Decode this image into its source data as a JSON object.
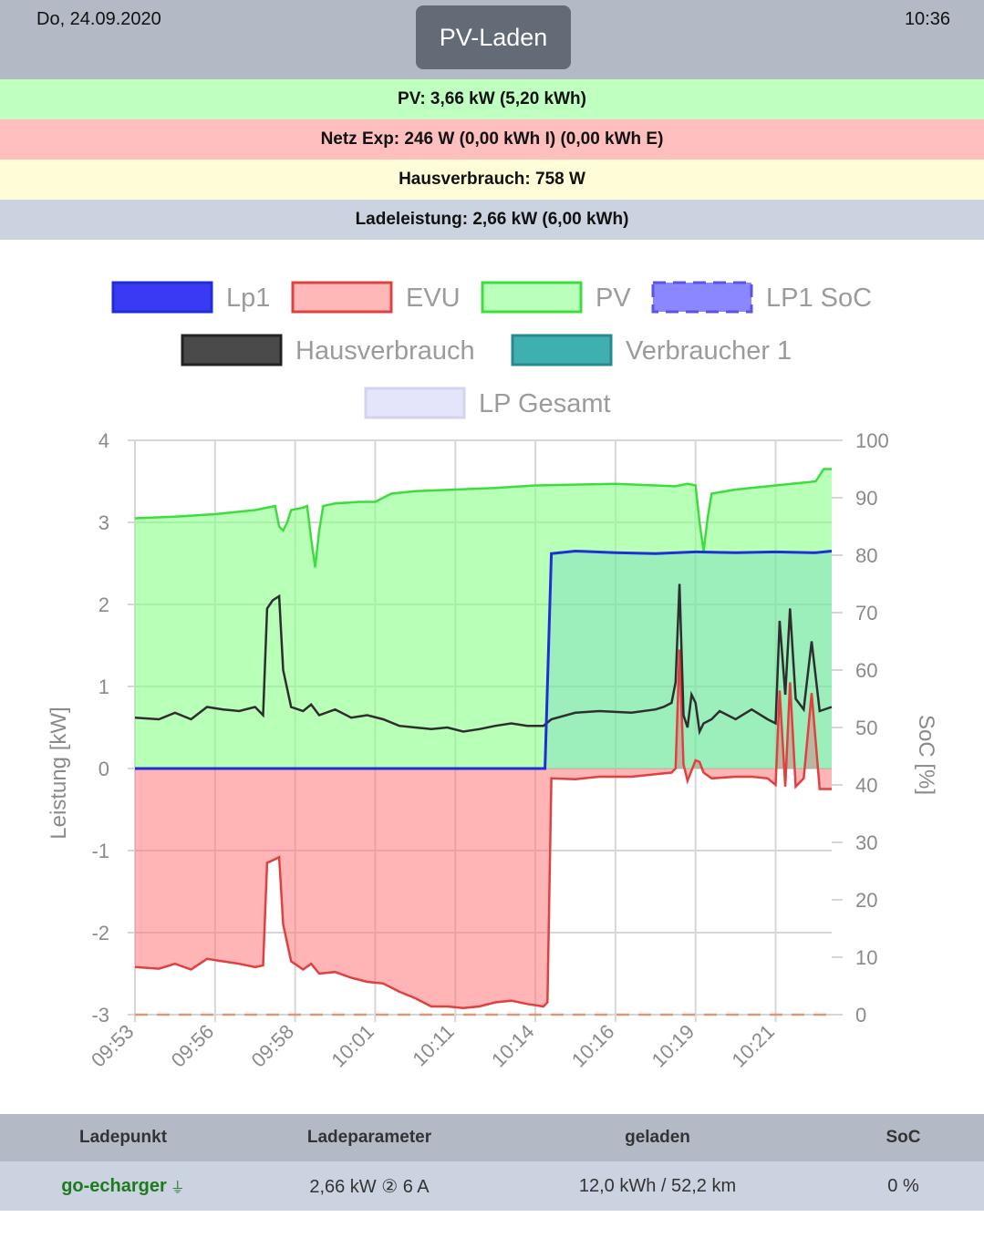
{
  "header": {
    "date": "Do, 24.09.2020",
    "time": "10:36",
    "mode_button": "PV-Laden"
  },
  "info": {
    "pv": "PV: 3,66 kW (5,20 kWh)",
    "netz": "Netz Exp: 246 W (0,00 kWh I) (0,00 kWh E)",
    "haus": "Hausverbrauch: 758 W",
    "lade": "Ladeleistung: 2,66 kW (6,00 kWh)"
  },
  "colors": {
    "lp1": "#1f2fd6",
    "evu": "#e04040",
    "pv": "#3ddd3d",
    "soc": "#7b78ff",
    "haus": "#2e2e2e",
    "verbraucher": "#39aaaa",
    "lp_gesamt": "#e4e4fb"
  },
  "chart_data": {
    "type": "line",
    "legend": [
      {
        "key": "lp1",
        "label": "Lp1"
      },
      {
        "key": "evu",
        "label": "EVU"
      },
      {
        "key": "pv",
        "label": "PV"
      },
      {
        "key": "soc",
        "label": "LP1 SoC"
      },
      {
        "key": "haus",
        "label": "Hausverbrauch"
      },
      {
        "key": "verbraucher",
        "label": "Verbraucher 1"
      },
      {
        "key": "lp_gesamt",
        "label": "LP Gesamt"
      }
    ],
    "ylabel": "Leistung [kW]",
    "ylabel_right": "SoC [%]",
    "ylim": [
      -3,
      4
    ],
    "ylim_right": [
      0,
      100
    ],
    "yticks": [
      "4",
      "3",
      "2",
      "1",
      "0",
      "-1",
      "-2",
      "-3"
    ],
    "yticks_right": [
      "100",
      "90",
      "80",
      "70",
      "60",
      "50",
      "40",
      "30",
      "20",
      "10",
      "0"
    ],
    "xlim": [
      0,
      8.7
    ],
    "xticks": [
      {
        "pos": 0,
        "label": "09:53"
      },
      {
        "pos": 1,
        "label": "09:56"
      },
      {
        "pos": 2,
        "label": "09:58"
      },
      {
        "pos": 3,
        "label": "10:01"
      },
      {
        "pos": 4,
        "label": "10:11"
      },
      {
        "pos": 5,
        "label": "10:14"
      },
      {
        "pos": 6,
        "label": "10:16"
      },
      {
        "pos": 7,
        "label": "10:19"
      },
      {
        "pos": 8,
        "label": "10:21"
      }
    ],
    "series": {
      "pv": [
        [
          0,
          3.05
        ],
        [
          0.5,
          3.07
        ],
        [
          1,
          3.1
        ],
        [
          1.5,
          3.15
        ],
        [
          1.75,
          3.2
        ],
        [
          1.8,
          2.95
        ],
        [
          1.85,
          2.9
        ],
        [
          1.9,
          3.0
        ],
        [
          1.95,
          3.15
        ],
        [
          2.1,
          3.18
        ],
        [
          2.15,
          3.2
        ],
        [
          2.2,
          2.8
        ],
        [
          2.25,
          2.45
        ],
        [
          2.3,
          2.9
        ],
        [
          2.35,
          3.2
        ],
        [
          2.5,
          3.23
        ],
        [
          2.8,
          3.25
        ],
        [
          3,
          3.25
        ],
        [
          3.1,
          3.3
        ],
        [
          3.2,
          3.35
        ],
        [
          3.5,
          3.38
        ],
        [
          4,
          3.4
        ],
        [
          4.5,
          3.42
        ],
        [
          5,
          3.45
        ],
        [
          6,
          3.47
        ],
        [
          6.5,
          3.45
        ],
        [
          6.75,
          3.44
        ],
        [
          6.9,
          3.47
        ],
        [
          7,
          3.45
        ],
        [
          7.05,
          3.0
        ],
        [
          7.1,
          2.65
        ],
        [
          7.15,
          3.05
        ],
        [
          7.2,
          3.35
        ],
        [
          7.5,
          3.4
        ],
        [
          8,
          3.45
        ],
        [
          8.5,
          3.5
        ],
        [
          8.6,
          3.65
        ],
        [
          8.7,
          3.65
        ]
      ],
      "lp1": [
        [
          0,
          0
        ],
        [
          5,
          0
        ],
        [
          5.12,
          0
        ],
        [
          5.2,
          2.62
        ],
        [
          5.5,
          2.65
        ],
        [
          6,
          2.63
        ],
        [
          6.5,
          2.62
        ],
        [
          7,
          2.64
        ],
        [
          7.5,
          2.63
        ],
        [
          8,
          2.64
        ],
        [
          8.5,
          2.63
        ],
        [
          8.7,
          2.65
        ]
      ],
      "haus": [
        [
          0,
          0.62
        ],
        [
          0.3,
          0.6
        ],
        [
          0.5,
          0.68
        ],
        [
          0.7,
          0.6
        ],
        [
          0.9,
          0.75
        ],
        [
          1.1,
          0.72
        ],
        [
          1.3,
          0.7
        ],
        [
          1.5,
          0.75
        ],
        [
          1.6,
          0.65
        ],
        [
          1.65,
          1.95
        ],
        [
          1.72,
          2.05
        ],
        [
          1.8,
          2.1
        ],
        [
          1.85,
          1.2
        ],
        [
          1.95,
          0.75
        ],
        [
          2.1,
          0.7
        ],
        [
          2.2,
          0.78
        ],
        [
          2.3,
          0.65
        ],
        [
          2.5,
          0.72
        ],
        [
          2.7,
          0.62
        ],
        [
          2.9,
          0.65
        ],
        [
          3.1,
          0.6
        ],
        [
          3.3,
          0.52
        ],
        [
          3.5,
          0.5
        ],
        [
          3.7,
          0.48
        ],
        [
          3.9,
          0.5
        ],
        [
          4.1,
          0.45
        ],
        [
          4.3,
          0.48
        ],
        [
          4.5,
          0.52
        ],
        [
          4.7,
          0.55
        ],
        [
          4.9,
          0.52
        ],
        [
          5.1,
          0.52
        ],
        [
          5.2,
          0.6
        ],
        [
          5.5,
          0.68
        ],
        [
          5.8,
          0.7
        ],
        [
          6.2,
          0.68
        ],
        [
          6.5,
          0.72
        ],
        [
          6.6,
          0.75
        ],
        [
          6.7,
          0.8
        ],
        [
          6.75,
          1.05
        ],
        [
          6.8,
          2.25
        ],
        [
          6.85,
          0.65
        ],
        [
          6.9,
          0.5
        ],
        [
          6.95,
          0.9
        ],
        [
          7,
          0.8
        ],
        [
          7.05,
          0.45
        ],
        [
          7.1,
          0.55
        ],
        [
          7.2,
          0.6
        ],
        [
          7.3,
          0.7
        ],
        [
          7.5,
          0.6
        ],
        [
          7.7,
          0.72
        ],
        [
          7.9,
          0.6
        ],
        [
          8,
          0.55
        ],
        [
          8.05,
          1.8
        ],
        [
          8.12,
          0.9
        ],
        [
          8.18,
          1.95
        ],
        [
          8.25,
          0.85
        ],
        [
          8.35,
          0.72
        ],
        [
          8.45,
          1.55
        ],
        [
          8.55,
          0.7
        ],
        [
          8.7,
          0.75
        ]
      ],
      "evu": [
        [
          0,
          -2.42
        ],
        [
          0.3,
          -2.44
        ],
        [
          0.5,
          -2.38
        ],
        [
          0.7,
          -2.45
        ],
        [
          0.9,
          -2.32
        ],
        [
          1.1,
          -2.35
        ],
        [
          1.3,
          -2.38
        ],
        [
          1.5,
          -2.42
        ],
        [
          1.6,
          -2.4
        ],
        [
          1.65,
          -1.15
        ],
        [
          1.72,
          -1.12
        ],
        [
          1.8,
          -1.08
        ],
        [
          1.85,
          -1.9
        ],
        [
          1.95,
          -2.35
        ],
        [
          2.1,
          -2.45
        ],
        [
          2.2,
          -2.38
        ],
        [
          2.3,
          -2.5
        ],
        [
          2.5,
          -2.48
        ],
        [
          2.7,
          -2.55
        ],
        [
          2.9,
          -2.6
        ],
        [
          3.1,
          -2.62
        ],
        [
          3.3,
          -2.72
        ],
        [
          3.5,
          -2.8
        ],
        [
          3.7,
          -2.9
        ],
        [
          3.9,
          -2.9
        ],
        [
          4.1,
          -2.92
        ],
        [
          4.3,
          -2.9
        ],
        [
          4.5,
          -2.85
        ],
        [
          4.7,
          -2.83
        ],
        [
          4.9,
          -2.87
        ],
        [
          5.1,
          -2.9
        ],
        [
          5.15,
          -2.85
        ],
        [
          5.2,
          -0.12
        ],
        [
          5.5,
          -0.13
        ],
        [
          5.8,
          -0.1
        ],
        [
          6.2,
          -0.1
        ],
        [
          6.5,
          -0.07
        ],
        [
          6.7,
          -0.05
        ],
        [
          6.75,
          0.0
        ],
        [
          6.8,
          1.45
        ],
        [
          6.85,
          0.05
        ],
        [
          6.9,
          -0.15
        ],
        [
          7,
          0.1
        ],
        [
          7.05,
          0.08
        ],
        [
          7.1,
          -0.05
        ],
        [
          7.2,
          -0.12
        ],
        [
          7.5,
          -0.1
        ],
        [
          7.7,
          -0.1
        ],
        [
          7.9,
          -0.12
        ],
        [
          8,
          -0.2
        ],
        [
          8.05,
          0.95
        ],
        [
          8.12,
          -0.22
        ],
        [
          8.18,
          1.05
        ],
        [
          8.25,
          -0.22
        ],
        [
          8.35,
          -0.12
        ],
        [
          8.45,
          0.92
        ],
        [
          8.55,
          -0.25
        ],
        [
          8.7,
          -0.25
        ]
      ],
      "soc": [
        [
          0,
          0
        ],
        [
          8.7,
          0
        ]
      ]
    }
  },
  "table": {
    "headers": [
      "Ladepunkt",
      "Ladeparameter",
      "geladen",
      "SoC"
    ],
    "row": {
      "name": "go-echarger",
      "plug_icon": "⏚",
      "params": "2,66 kW ② 6 A",
      "charged": "12,0 kWh / 52,2 km",
      "soc": "0 %"
    }
  }
}
